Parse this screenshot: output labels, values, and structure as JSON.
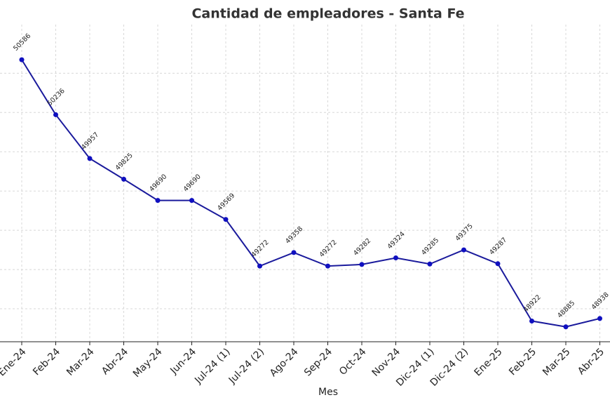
{
  "chart_data": {
    "type": "line",
    "title": "Cantidad de empleadores - Santa Fe",
    "x_label": "Mes",
    "categories": [
      "Ene-24",
      "Feb-24",
      "Mar-24",
      "Abr-24",
      "May-24",
      "Jun-24",
      "Jul-24 (1)",
      "Jul-24 (2)",
      "Ago-24",
      "Sep-24",
      "Oct-24",
      "Nov-24",
      "Dic-24 (1)",
      "Dic-24 (2)",
      "Ene-25",
      "Feb-25",
      "Mar-25",
      "Abr-25"
    ],
    "series": [
      {
        "name": "Empleadores",
        "color": "#1a1a9c",
        "values": [
          50586,
          50236,
          49957,
          49825,
          49690,
          49690,
          49569,
          49272,
          49358,
          49272,
          49282,
          49324,
          49285,
          49375,
          49287,
          48922,
          48885,
          48938
        ]
      }
    ],
    "ylim": [
      48790,
      50810
    ],
    "yticks": [
      49000,
      49250,
      49500,
      49750,
      50000,
      50250,
      50500
    ],
    "grid": true
  }
}
